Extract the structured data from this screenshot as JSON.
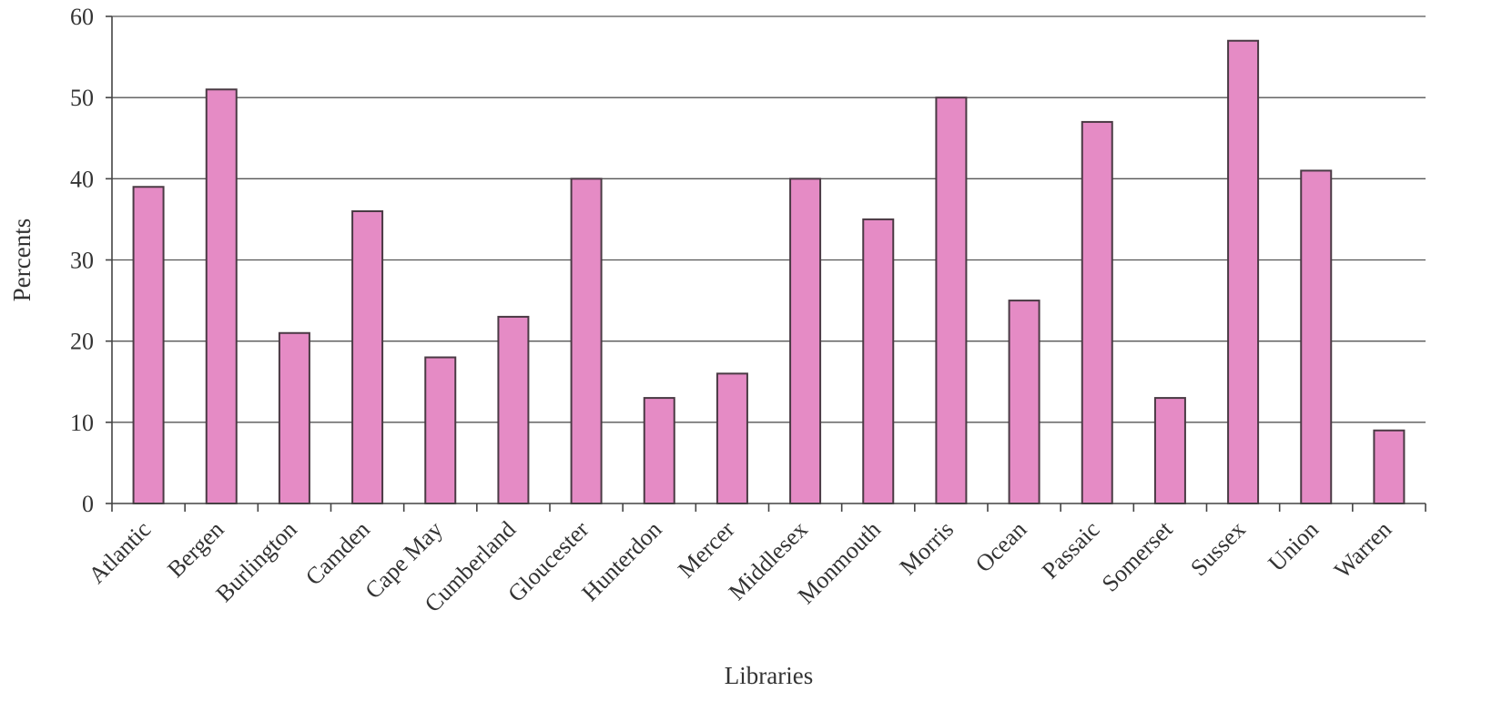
{
  "chart_data": {
    "type": "bar",
    "xlabel": "Libraries",
    "ylabel": "Percents",
    "ylim": [
      0,
      60
    ],
    "yticks": [
      0,
      10,
      20,
      30,
      40,
      50,
      60
    ],
    "grid": true,
    "bar_color": "#e58bc5",
    "categories": [
      "Atlantic",
      "Bergen",
      "Burlington",
      "Camden",
      "Cape May",
      "Cumberland",
      "Gloucester",
      "Hunterdon",
      "Mercer",
      "Middlesex",
      "Monmouth",
      "Morris",
      "Ocean",
      "Passaic",
      "Somerset",
      "Sussex",
      "Union",
      "Warren"
    ],
    "values": [
      39,
      51,
      21,
      36,
      18,
      23,
      40,
      13,
      16,
      40,
      35,
      50,
      25,
      47,
      13,
      57,
      41,
      9
    ]
  }
}
